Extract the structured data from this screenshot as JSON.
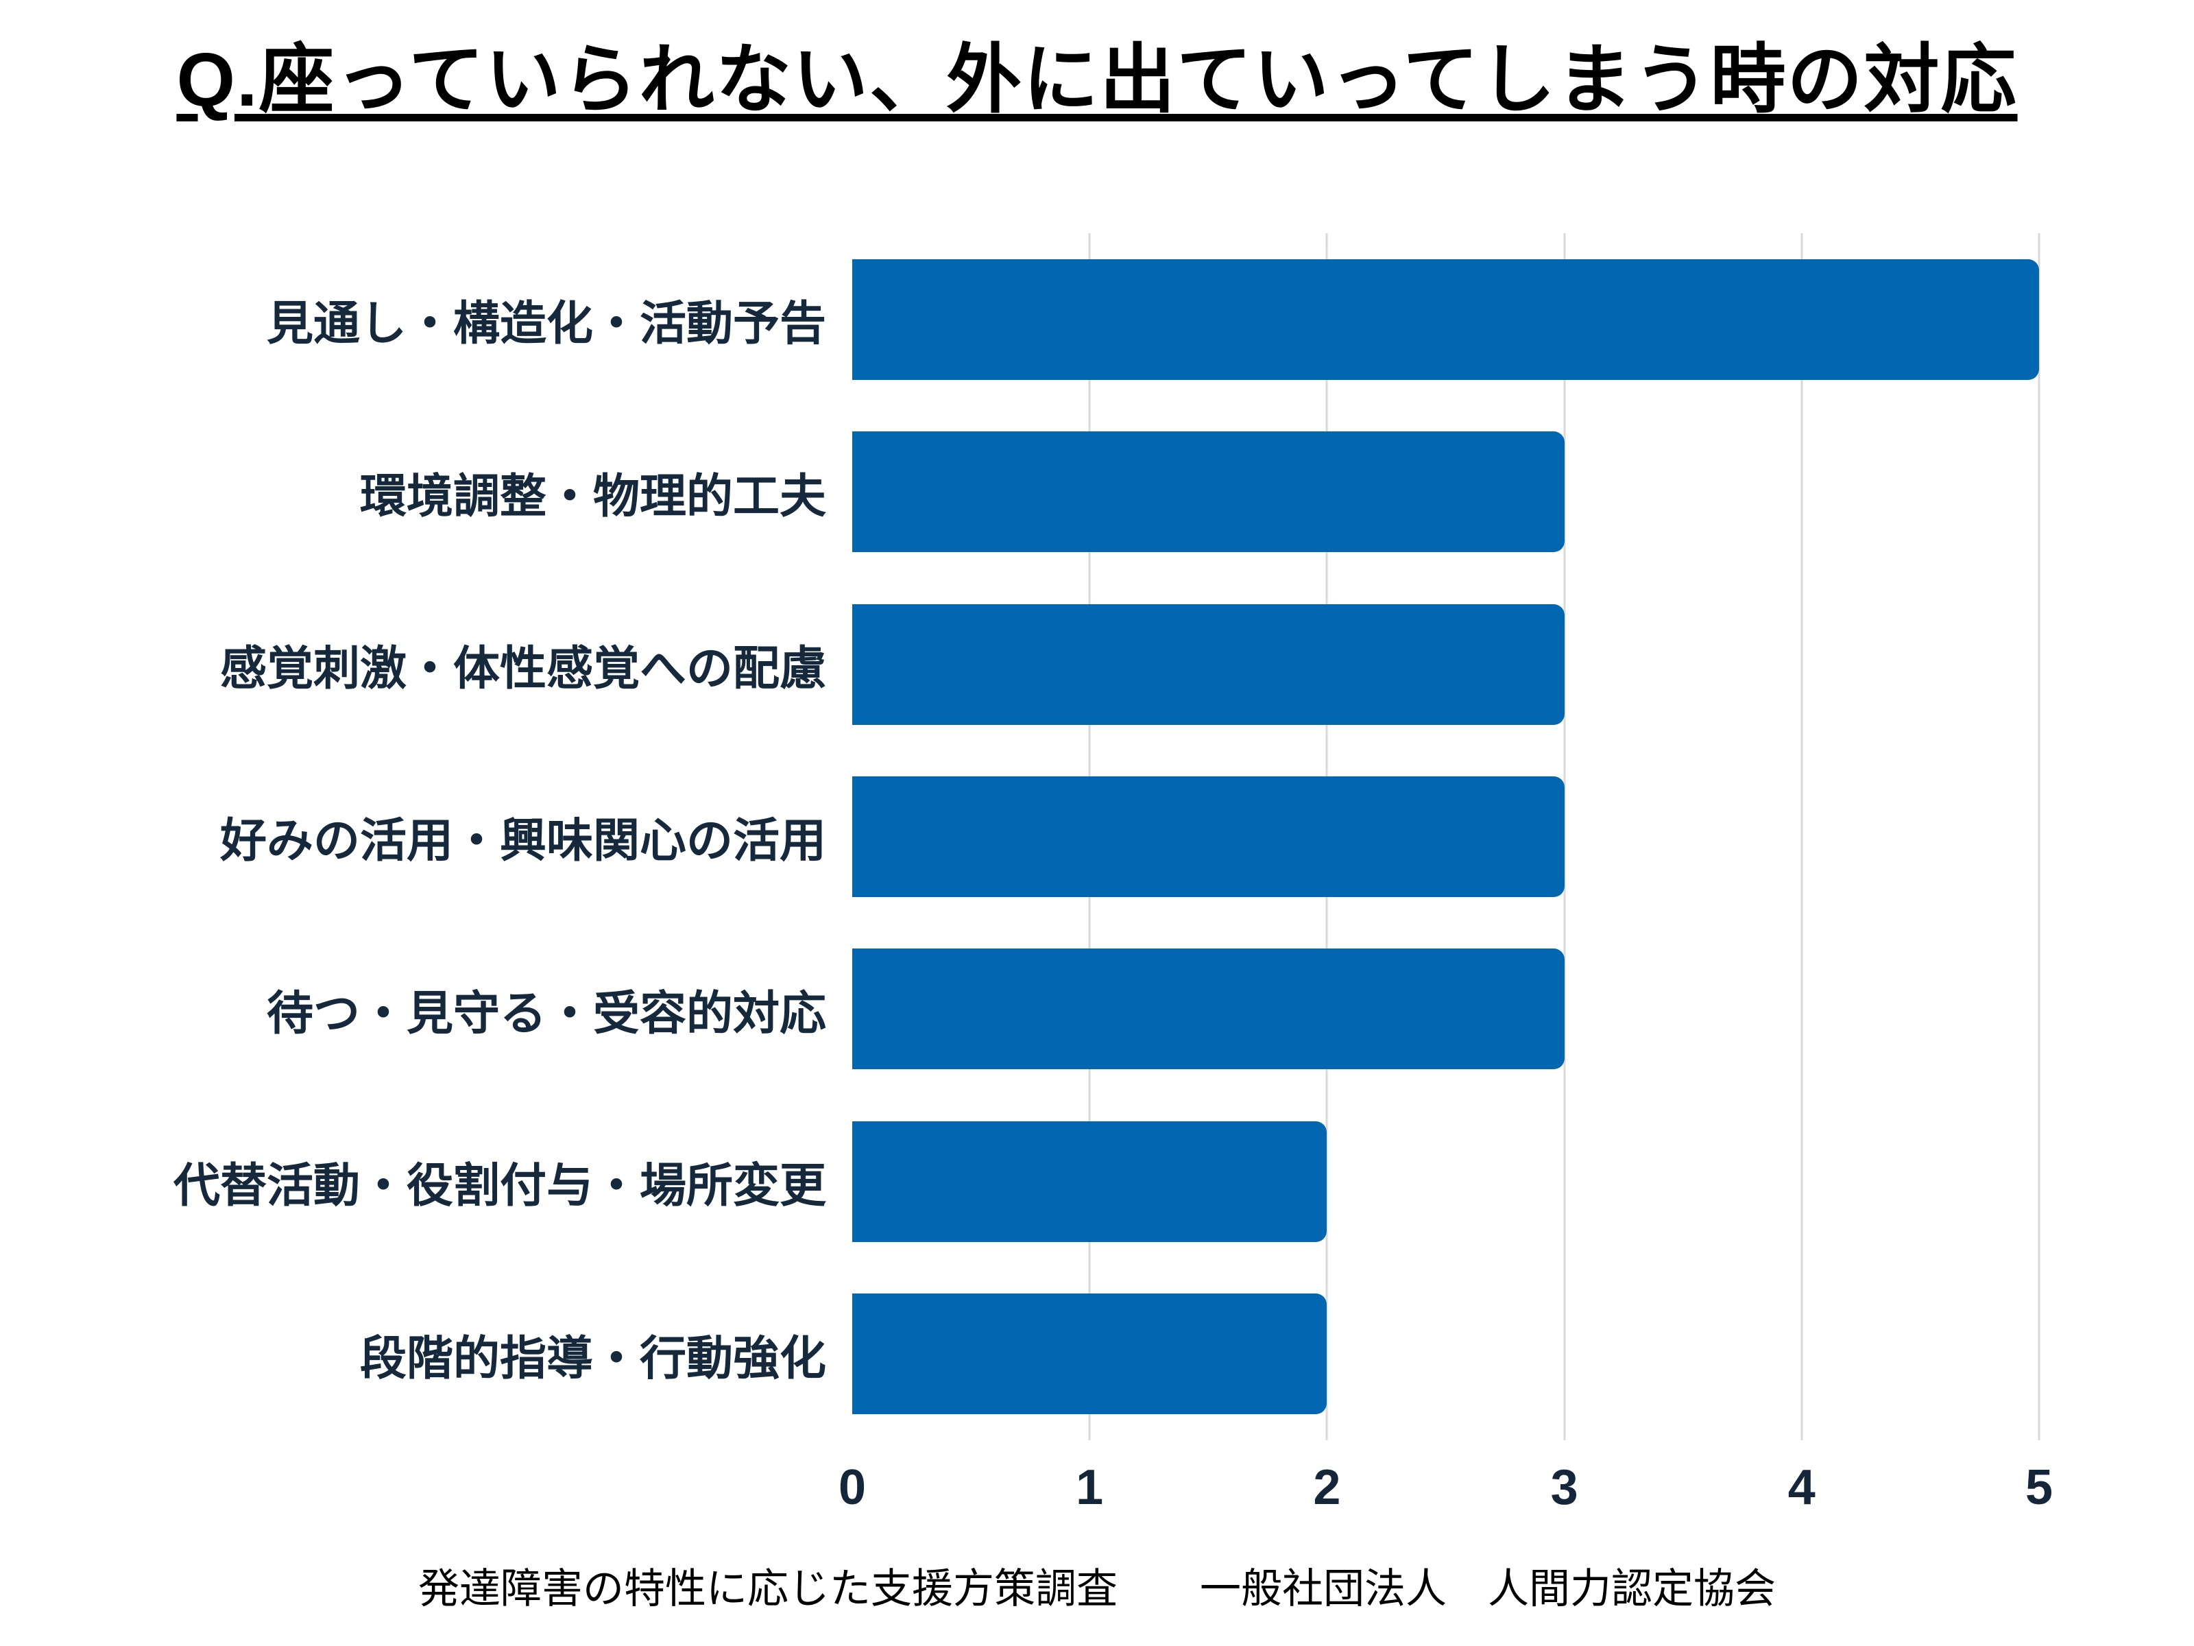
{
  "title": "Q.座っていられない、外に出ていってしまう時の対応",
  "source_note": "発達障害の特性に応じた支援方策調査　　一般社団法人　人間力認定協会",
  "colors": {
    "background": "#FFFFFF",
    "bar": "#0366B1",
    "category_label": "#16293C",
    "tick_label": "#15263A",
    "gridline": "#D9D9D9",
    "title_text": "#000000",
    "source_text": "#000000"
  },
  "chart_data": {
    "type": "bar",
    "orientation": "horizontal",
    "title": "Q.座っていられない、外に出ていってしまう時の対応",
    "categories": [
      "見通し・構造化・活動予告",
      "環境調整・物理的工夫",
      "感覚刺激・体性感覚への配慮",
      "好みの活用・興味関心の活用",
      "待つ・見守る・受容的対応",
      "代替活動・役割付与・場所変更",
      "段階的指導・行動強化"
    ],
    "values": [
      5,
      3,
      3,
      3,
      3,
      2,
      2
    ],
    "xlabel": "",
    "ylabel": "",
    "xlim": [
      0,
      5
    ],
    "xticks": [
      0,
      1,
      2,
      3,
      4,
      5
    ],
    "grid": true,
    "legend": false,
    "bar_corner_radius": "rounded-right",
    "source_note": "発達障害の特性に応じた支援方策調査　　一般社団法人　人間力認定協会"
  }
}
